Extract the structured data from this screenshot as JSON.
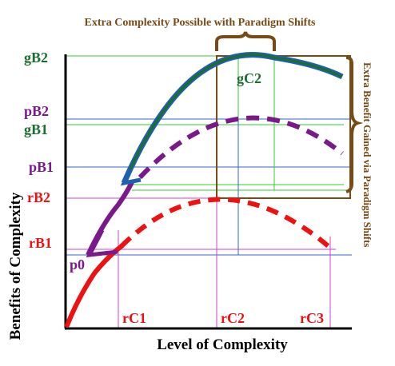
{
  "title": "Extra Complexity Possible with Paradigm Shifts",
  "right_label": "Extra Benefit Gained via Paradigm Shifts",
  "xlabel": "Level of Complexity",
  "ylabel": "Benefits of Complexity",
  "y_labels": {
    "gB2": "gB2",
    "pB2": "pB2",
    "gB1": "gB1",
    "pB1": "pB1",
    "rB2": "rB2",
    "rB1": "rB1"
  },
  "x_labels": {
    "rC1": "rC1",
    "rC2": "rC2",
    "rC3": "rC3"
  },
  "curve_labels": {
    "p0": "p0",
    "gC2": "gC2"
  },
  "colors": {
    "red": "#ee1111",
    "purple": "#7a1a8a",
    "green": "#1a6e2e",
    "blue": "#1f5fb0",
    "brown": "#7a4a14",
    "grid_green": "#33cc33",
    "grid_blue": "#3366cc",
    "grid_pink": "#cc44cc"
  }
}
